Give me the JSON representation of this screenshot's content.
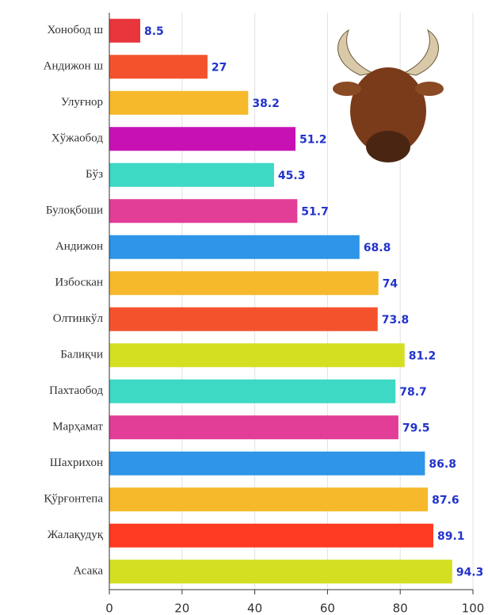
{
  "chart_data": {
    "type": "barh",
    "categories": [
      "Хонобод ш",
      "Андижон ш",
      "Улуғнор",
      "Хўжаобод",
      "Бўз",
      "Булоқбоши",
      "Андижон",
      "Избоскан",
      "Олтинкўл",
      "Балиқчи",
      "Пахтаобод",
      "Марҳамат",
      "Шахрихон",
      "Қўрғонтепа",
      "Жалақудуқ",
      "Асака"
    ],
    "values": [
      8.5,
      27,
      38.2,
      51.2,
      45.3,
      51.7,
      68.8,
      74,
      73.8,
      81.2,
      78.7,
      79.5,
      86.8,
      87.6,
      89.1,
      94.3
    ],
    "colors": [
      "#e8363c",
      "#f4522d",
      "#f6b92b",
      "#c711b5",
      "#3dd9c5",
      "#e23d97",
      "#2e95e8",
      "#f6b92b",
      "#f4522d",
      "#d4df22",
      "#3dd9c5",
      "#e23d97",
      "#2e95e8",
      "#f6b92b",
      "#ff3a22",
      "#d4df22"
    ],
    "xlim": [
      0,
      100
    ],
    "xticks": [
      0,
      20,
      40,
      60,
      80,
      100
    ],
    "grid": true
  }
}
